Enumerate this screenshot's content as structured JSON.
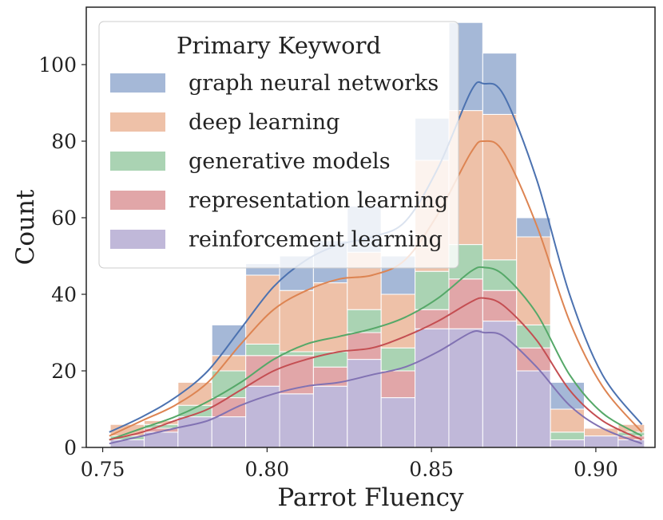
{
  "chart_data": {
    "type": "bar",
    "subtype": "stacked-histogram-with-kde",
    "title": "",
    "xlabel": "Parrot Fluency",
    "ylabel": "Count",
    "xlim": [
      0.745,
      0.918
    ],
    "ylim": [
      0,
      115
    ],
    "xticks": [
      "0.75",
      "0.80",
      "0.85",
      "0.90"
    ],
    "yticks": [
      "0",
      "20",
      "40",
      "60",
      "80",
      "100"
    ],
    "grid": false,
    "legend": {
      "title": "Primary Keyword",
      "placement": "top-left"
    },
    "bin_edges": [
      0.7523,
      0.7626,
      0.7729,
      0.7832,
      0.7935,
      0.8038,
      0.8141,
      0.8244,
      0.8347,
      0.845,
      0.8553,
      0.8656,
      0.8759,
      0.8862,
      0.8965,
      0.9068,
      0.9148
    ],
    "series": [
      {
        "name": "reinforcement learning",
        "color": "#8172b3",
        "values": [
          2,
          4,
          8,
          8,
          16,
          14,
          16,
          23,
          13,
          31,
          31,
          33,
          20,
          2,
          3,
          2
        ]
      },
      {
        "name": "representation learning",
        "color": "#c44e52",
        "values": [
          0,
          1,
          0,
          5,
          8,
          10,
          5,
          7,
          7,
          5,
          13,
          8,
          6,
          0,
          0,
          1
        ]
      },
      {
        "name": "generative models",
        "color": "#55a868",
        "values": [
          1,
          1,
          3,
          7,
          3,
          1,
          4,
          6,
          6,
          10,
          9,
          8,
          6,
          2,
          0,
          1
        ]
      },
      {
        "name": "deep learning",
        "color": "#dd8452",
        "values": [
          3,
          1,
          6,
          4,
          18,
          16,
          18,
          15,
          14,
          29,
          35,
          38,
          23,
          6,
          2,
          2
        ]
      },
      {
        "name": "graph neural networks",
        "color": "#4c72b0",
        "values": [
          0,
          0,
          0,
          8,
          3,
          9,
          11,
          12,
          10,
          11,
          23,
          16,
          5,
          7,
          0,
          0
        ]
      }
    ],
    "kde_x": [
      0.752,
      0.762,
      0.772,
      0.782,
      0.792,
      0.802,
      0.812,
      0.822,
      0.832,
      0.842,
      0.852,
      0.862,
      0.866,
      0.872,
      0.882,
      0.892,
      0.902,
      0.914
    ],
    "kde": [
      {
        "series": "graph neural networks",
        "y": [
          4,
          8,
          13,
          20,
          31,
          42,
          49,
          53,
          55,
          59,
          73,
          93,
          95,
          92,
          70,
          40,
          19,
          6
        ]
      },
      {
        "series": "deep learning",
        "y": [
          3,
          7,
          11,
          17,
          27,
          36,
          41,
          44,
          45,
          49,
          61,
          77,
          80,
          77,
          58,
          33,
          16,
          4
        ]
      },
      {
        "series": "generative models",
        "y": [
          2,
          5,
          8,
          12,
          17,
          23,
          27,
          29,
          31,
          34,
          39,
          46,
          47,
          45,
          35,
          19,
          9,
          3
        ]
      },
      {
        "series": "representation learning",
        "y": [
          2,
          4,
          7,
          10,
          15,
          20,
          23,
          25,
          26,
          29,
          33,
          38,
          39,
          37,
          28,
          15,
          7,
          2
        ]
      },
      {
        "series": "reinforcement learning",
        "y": [
          1,
          3,
          5,
          7,
          11,
          14,
          16,
          17,
          19,
          21,
          25,
          30,
          30,
          29,
          21,
          11,
          5,
          1
        ]
      }
    ]
  }
}
